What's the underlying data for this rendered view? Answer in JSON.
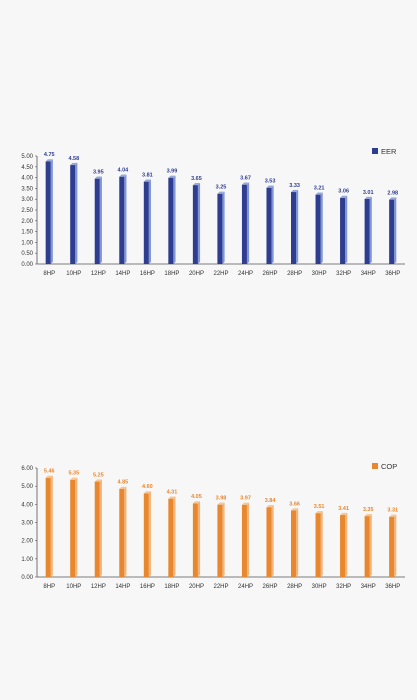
{
  "chart_data": [
    {
      "type": "bar",
      "categories": [
        "8HP",
        "10HP",
        "12HP",
        "14HP",
        "16HP",
        "18HP",
        "20HP",
        "22HP",
        "24HP",
        "26HP",
        "28HP",
        "30HP",
        "32HP",
        "34HP",
        "36HP"
      ],
      "series": [
        {
          "name": "EER",
          "values": [
            4.75,
            4.58,
            3.95,
            4.04,
            3.81,
            3.99,
            3.65,
            3.25,
            3.67,
            3.53,
            3.33,
            3.21,
            3.06,
            3.01,
            2.98
          ]
        }
      ],
      "data_labels": [
        "4.75",
        "4.58",
        "3.95",
        "4.04",
        "3.81",
        "3.99",
        "3.65",
        "3.25",
        "3.67",
        "3.53",
        "3.33",
        "3.21",
        "3.06",
        "3.01",
        "2.98"
      ],
      "yticks": [
        "0.00",
        "0.50",
        "1.00",
        "1.50",
        "2.00",
        "2.50",
        "3.00",
        "3.50",
        "4.00",
        "4.50",
        "5.00"
      ],
      "ylim": [
        0,
        5
      ],
      "grid": false,
      "legend_position": "top-right",
      "colors": {
        "bar_front": "#2e3d8f",
        "bar_side": "#7f97d6",
        "bar_top": "#9aa8d8",
        "label": "#2e3d8f",
        "legend": "#2e3d8f"
      }
    },
    {
      "type": "bar",
      "categories": [
        "8HP",
        "10HP",
        "12HP",
        "14HP",
        "16HP",
        "18HP",
        "20HP",
        "22HP",
        "24HP",
        "26HP",
        "28HP",
        "30HP",
        "32HP",
        "34HP",
        "36HP"
      ],
      "series": [
        {
          "name": "COP",
          "values": [
            5.46,
            5.35,
            5.25,
            4.85,
            4.6,
            4.31,
            4.05,
            3.98,
            3.97,
            3.84,
            3.66,
            3.51,
            3.41,
            3.35,
            3.31
          ]
        }
      ],
      "data_labels": [
        "5.46",
        "5.35",
        "5.25",
        "4.85",
        "4.60",
        "4.31",
        "4.05",
        "3.98",
        "3.97",
        "3.84",
        "3.66",
        "3.51",
        "3.41",
        "3.35",
        "3.31"
      ],
      "yticks": [
        "0.00",
        "1.00",
        "2.00",
        "3.00",
        "4.00",
        "5.00",
        "6.00"
      ],
      "ylim": [
        0,
        6
      ],
      "grid": false,
      "legend_position": "top-right",
      "colors": {
        "bar_front": "#e8872e",
        "bar_side": "#f1b57a",
        "bar_top": "#f5c79a",
        "label": "#e8872e",
        "legend": "#e8872e"
      }
    }
  ]
}
